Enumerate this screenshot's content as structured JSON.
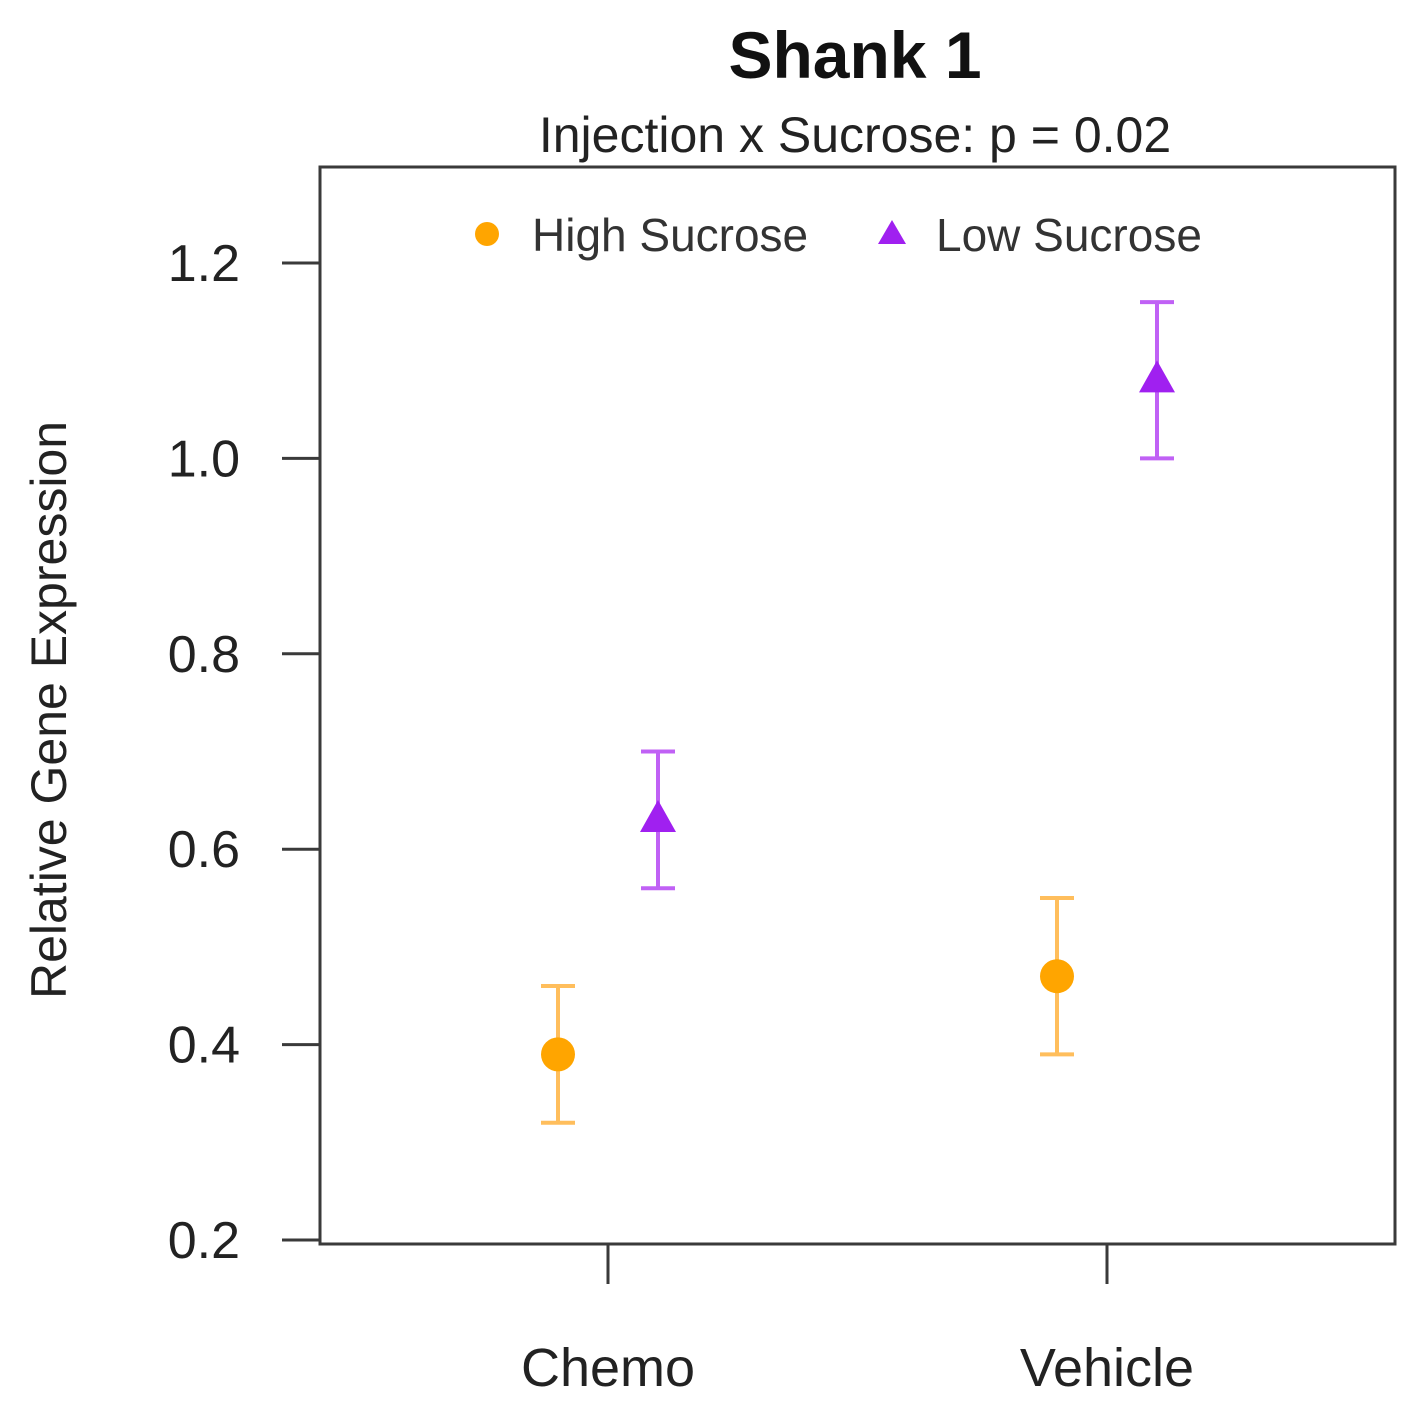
{
  "chart_data": {
    "type": "scatter",
    "title": "Shank 1",
    "subtitle": "Injection x Sucrose: p = 0.02",
    "xlabel": "",
    "ylabel": "Relative Gene Expression",
    "categories": [
      "Chemo",
      "Vehicle"
    ],
    "ylim": [
      0.2,
      1.3
    ],
    "yticks": [
      0.2,
      0.4,
      0.6,
      0.8,
      1.0,
      1.2
    ],
    "ytick_labels": [
      "0.2",
      "0.4",
      "0.6",
      "0.8",
      "1.0",
      "1.2"
    ],
    "grid": false,
    "legend_position": "top",
    "series": [
      {
        "name": "High Sucrose",
        "marker": "circle",
        "color": "#FFA500",
        "errorbar_color": "#FFBE5C",
        "values": [
          0.39,
          0.47
        ],
        "lower": [
          0.32,
          0.39
        ],
        "upper": [
          0.46,
          0.55
        ]
      },
      {
        "name": "Low Sucrose",
        "marker": "triangle",
        "color": "#A020F0",
        "errorbar_color": "#C061F5",
        "values": [
          0.63,
          1.08
        ],
        "lower": [
          0.56,
          1.0
        ],
        "upper": [
          0.7,
          1.16
        ]
      }
    ]
  }
}
